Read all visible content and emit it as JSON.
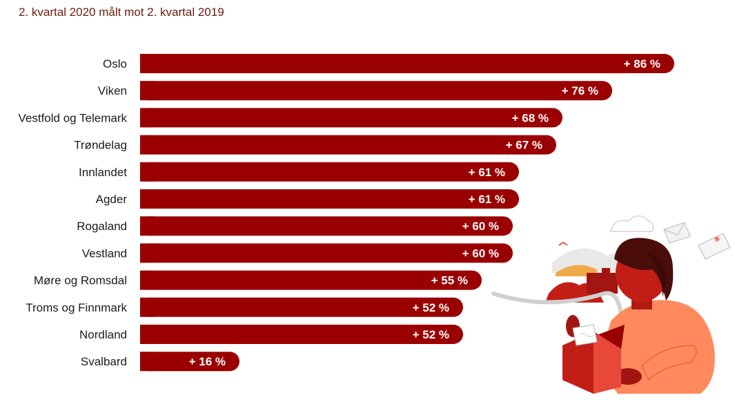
{
  "subtitle": "2. kvartal 2020 målt mot 2. kvartal 2019",
  "colors": {
    "bar": "#9a0000",
    "label": "#1a1a1a",
    "value_text": "#ffffff",
    "subtitle": "#6b1a0f"
  },
  "chart_data": {
    "type": "bar",
    "orientation": "horizontal",
    "categories": [
      "Oslo",
      "Viken",
      "Vestfold og Telemark",
      "Trøndelag",
      "Innlandet",
      "Agder",
      "Rogaland",
      "Vestland",
      "Møre og Romsdal",
      "Troms og Finnmark",
      "Nordland",
      "Svalbard"
    ],
    "values": [
      86,
      76,
      68,
      67,
      61,
      61,
      60,
      60,
      55,
      52,
      52,
      16
    ],
    "value_labels": [
      "+ 86 %",
      "+ 76 %",
      "+ 68 %",
      "+ 67 %",
      "+ 61 %",
      "+ 61 %",
      "+ 60 %",
      "+ 60 %",
      "+ 55 %",
      "+ 52 %",
      "+ 52 %",
      "+ 16 %"
    ],
    "title": "",
    "xlabel": "",
    "ylabel": "",
    "grid": false
  }
}
